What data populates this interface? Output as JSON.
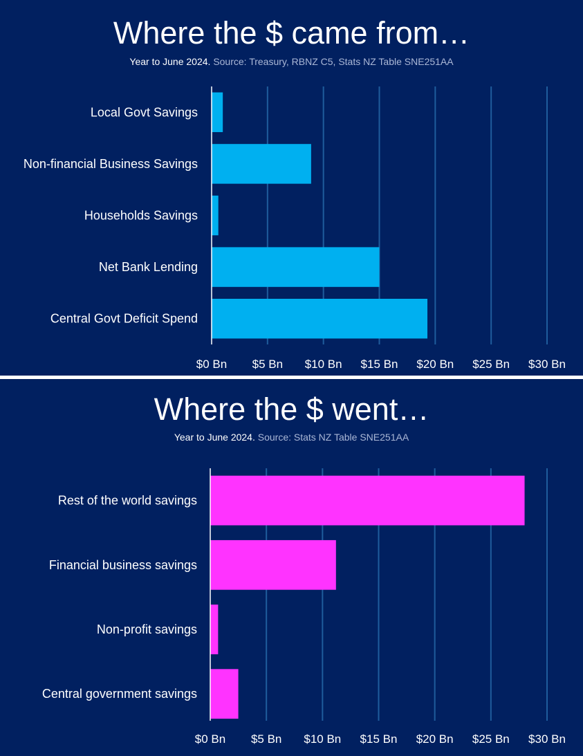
{
  "chart_data": [
    {
      "type": "bar",
      "orientation": "horizontal",
      "title": "Where the $ came from…",
      "subtitle_strong": "Year to June 2024.",
      "subtitle_source": "Source: Treasury, RBNZ C5, Stats NZ Table SNE251AA",
      "categories": [
        "Local Govt Savings",
        "Non-financial Business Savings",
        "Households Savings",
        "Net Bank Lending",
        "Central Govt Deficit Spend"
      ],
      "values": [
        1.0,
        8.9,
        0.6,
        15.0,
        19.3
      ],
      "xlim": [
        0,
        30
      ],
      "xticks": [
        0,
        5,
        10,
        15,
        20,
        25,
        30
      ],
      "xtick_labels": [
        "$0 Bn",
        "$5 Bn",
        "$10 Bn",
        "$15 Bn",
        "$20 Bn",
        "$25 Bn",
        "$30 Bn"
      ],
      "bar_color": "#00b0f0",
      "grid_color": "#1f5c9c",
      "xlabel": "",
      "ylabel": ""
    },
    {
      "type": "bar",
      "orientation": "horizontal",
      "title": "Where the $ went…",
      "subtitle_strong": "Year to June 2024.",
      "subtitle_source": "Source: Stats NZ Table SNE251AA",
      "categories": [
        "Rest of the world savings",
        "Financial business savings",
        "Non-profit savings",
        "Central government savings"
      ],
      "values": [
        28.0,
        11.2,
        0.7,
        2.5
      ],
      "xlim": [
        0,
        30
      ],
      "xticks": [
        0,
        5,
        10,
        15,
        20,
        25,
        30
      ],
      "xtick_labels": [
        "$0 Bn",
        "$5 Bn",
        "$10 Bn",
        "$15 Bn",
        "$20 Bn",
        "$25 Bn",
        "$30 Bn"
      ],
      "bar_color": "#ff33ff",
      "grid_color": "#1f5c9c",
      "xlabel": "",
      "ylabel": ""
    }
  ]
}
